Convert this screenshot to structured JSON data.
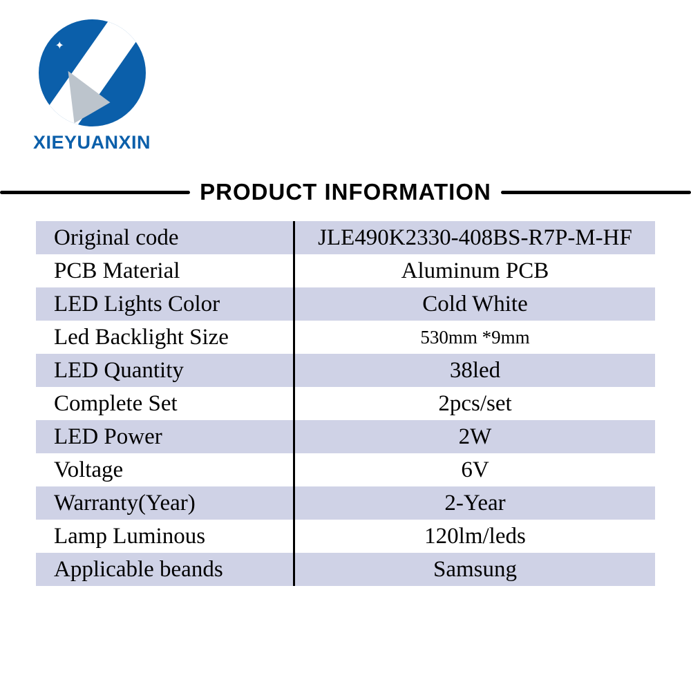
{
  "brand": {
    "name": "XIEYUANXIN",
    "logo_bg": "#0b5faa",
    "logo_accent": "#bcc4cc",
    "text_color": "#0b5faa"
  },
  "header": {
    "title": "PRODUCT INFORMATION",
    "line_color": "#000000",
    "title_fontsize": 33
  },
  "table": {
    "row_bg_odd": "#cfd2e6",
    "row_bg_even": "#ffffff",
    "divider_color": "#000000",
    "label_fontsize": 33,
    "value_fontsize": 33,
    "rows": [
      {
        "label": "Original code",
        "value": "JLE490K2330-408BS-R7P-M-HF"
      },
      {
        "label": "PCB Material",
        "value": "Aluminum PCB"
      },
      {
        "label": "LED Lights Color",
        "value": "Cold White"
      },
      {
        "label": "Led Backlight Size",
        "value": "530mm *9mm",
        "small": true
      },
      {
        "label": "LED Quantity",
        "value": "38led"
      },
      {
        "label": "Complete Set",
        "value": "2pcs/set"
      },
      {
        "label": "LED Power",
        "value": "2W"
      },
      {
        "label": "Voltage",
        "value": "6V"
      },
      {
        "label": "Warranty(Year)",
        "value": "2-Year"
      },
      {
        "label": "Lamp Luminous",
        "value": "120lm/leds"
      },
      {
        "label": "Applicable beands",
        "value": "Samsung"
      }
    ]
  }
}
